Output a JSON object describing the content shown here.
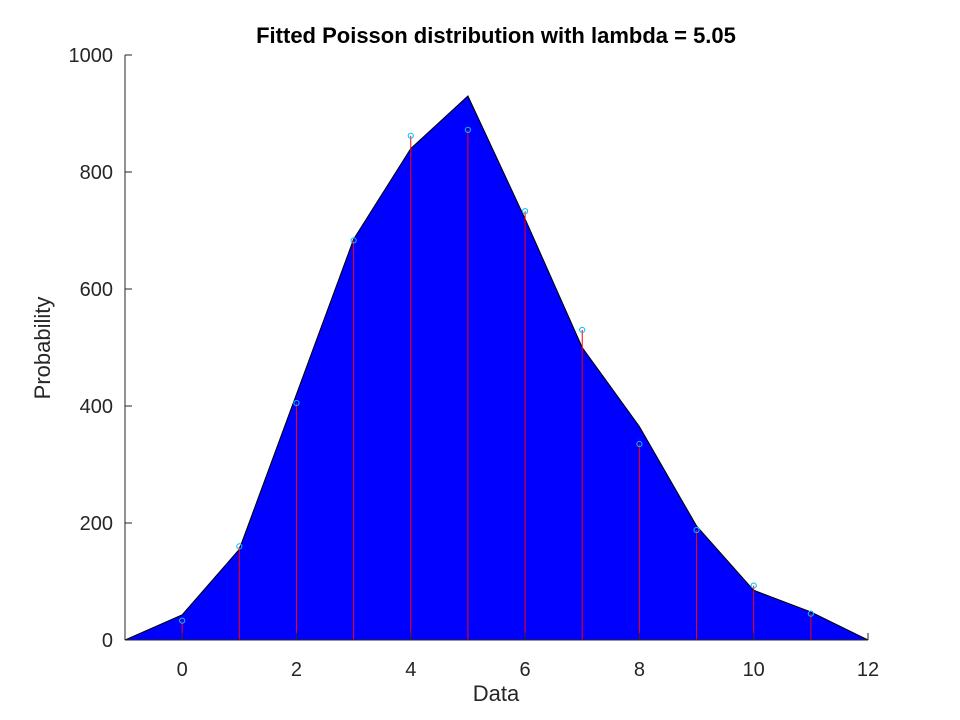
{
  "chart_data": {
    "type": "area",
    "title": "Fitted Poisson distribution with lambda = 5.05",
    "xlabel": "Data",
    "ylabel": "Probability",
    "xlim": [
      -1,
      12
    ],
    "ylim": [
      0,
      1000
    ],
    "xticks": [
      0,
      2,
      4,
      6,
      8,
      10,
      12
    ],
    "yticks": [
      0,
      200,
      400,
      600,
      800,
      1000
    ],
    "grid": false,
    "fitted_area": {
      "x": [
        -1,
        0,
        1,
        2,
        3,
        4,
        5,
        6,
        7,
        8,
        9,
        10,
        11,
        12
      ],
      "y": [
        0,
        43,
        155,
        420,
        685,
        840,
        930,
        720,
        500,
        365,
        195,
        85,
        48,
        0
      ],
      "color": "#0000ff"
    },
    "stems": {
      "x": [
        0,
        1,
        2,
        3,
        4,
        5,
        6,
        7,
        8,
        9,
        10,
        11
      ],
      "y": [
        33,
        160,
        405,
        683,
        862,
        872,
        733,
        530,
        335,
        188,
        93,
        45
      ],
      "stem_color": "#ff0000",
      "marker_color": "#00bfff"
    }
  }
}
